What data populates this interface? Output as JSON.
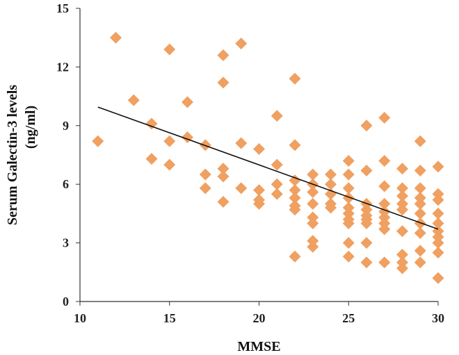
{
  "chart_data": {
    "type": "scatter",
    "title": "",
    "xlabel": "MMSE",
    "ylabel_lines": [
      "Serum Galectin-3 levels",
      "(ng/ml)"
    ],
    "xlim": [
      10,
      30
    ],
    "ylim": [
      0,
      15
    ],
    "x_ticks": [
      10,
      15,
      20,
      25,
      30
    ],
    "y_ticks": [
      0,
      3,
      6,
      9,
      12,
      15
    ],
    "grid": false,
    "legend": "none",
    "marker": "diamond",
    "marker_color": "#f0a060",
    "trendline_color": "#111111",
    "series": [
      {
        "points": [
          [
            11,
            8.2
          ],
          [
            12,
            13.5
          ],
          [
            13,
            10.3
          ],
          [
            14,
            9.1
          ],
          [
            14,
            7.3
          ],
          [
            15,
            12.9
          ],
          [
            15,
            8.2
          ],
          [
            15,
            7.0
          ],
          [
            16,
            10.2
          ],
          [
            16,
            8.4
          ],
          [
            17,
            8.0
          ],
          [
            17,
            6.5
          ],
          [
            17,
            5.8
          ],
          [
            18,
            12.6
          ],
          [
            18,
            11.2
          ],
          [
            18,
            6.8
          ],
          [
            18,
            6.4
          ],
          [
            18,
            5.1
          ],
          [
            19,
            13.2
          ],
          [
            19,
            8.1
          ],
          [
            19,
            5.8
          ],
          [
            20,
            7.8
          ],
          [
            20,
            5.7
          ],
          [
            20,
            5.2
          ],
          [
            20,
            5.0
          ],
          [
            21,
            9.5
          ],
          [
            21,
            7.0
          ],
          [
            21,
            6.0
          ],
          [
            21,
            5.5
          ],
          [
            22,
            11.4
          ],
          [
            22,
            8.0
          ],
          [
            22,
            6.2
          ],
          [
            22,
            5.7
          ],
          [
            22,
            5.3
          ],
          [
            22,
            4.9
          ],
          [
            22,
            4.7
          ],
          [
            22,
            2.3
          ],
          [
            23,
            6.5
          ],
          [
            23,
            6.0
          ],
          [
            23,
            5.6
          ],
          [
            23,
            5.0
          ],
          [
            23,
            4.3
          ],
          [
            23,
            4.0
          ],
          [
            23,
            3.1
          ],
          [
            23,
            2.8
          ],
          [
            24,
            6.5
          ],
          [
            24,
            6.0
          ],
          [
            24,
            5.5
          ],
          [
            24,
            5.0
          ],
          [
            24,
            4.8
          ],
          [
            25,
            7.2
          ],
          [
            25,
            6.5
          ],
          [
            25,
            5.8
          ],
          [
            25,
            5.3
          ],
          [
            25,
            4.8
          ],
          [
            25,
            4.5
          ],
          [
            25,
            4.2
          ],
          [
            25,
            4.0
          ],
          [
            25,
            3.0
          ],
          [
            25,
            2.3
          ],
          [
            26,
            9.0
          ],
          [
            26,
            6.7
          ],
          [
            26,
            5.0
          ],
          [
            26,
            4.7
          ],
          [
            26,
            4.4
          ],
          [
            26,
            4.2
          ],
          [
            26,
            4.0
          ],
          [
            26,
            3.0
          ],
          [
            26,
            2.0
          ],
          [
            27,
            9.4
          ],
          [
            27,
            7.2
          ],
          [
            27,
            5.9
          ],
          [
            27,
            5.0
          ],
          [
            27,
            4.6
          ],
          [
            27,
            4.3
          ],
          [
            27,
            4.0
          ],
          [
            27,
            3.7
          ],
          [
            27,
            2.0
          ],
          [
            28,
            6.8
          ],
          [
            28,
            5.8
          ],
          [
            28,
            5.4
          ],
          [
            28,
            5.0
          ],
          [
            28,
            4.7
          ],
          [
            28,
            3.6
          ],
          [
            28,
            2.4
          ],
          [
            28,
            2.0
          ],
          [
            28,
            1.7
          ],
          [
            29,
            8.2
          ],
          [
            29,
            6.7
          ],
          [
            29,
            5.8
          ],
          [
            29,
            5.3
          ],
          [
            29,
            5.0
          ],
          [
            29,
            4.5
          ],
          [
            29,
            4.0
          ],
          [
            29,
            3.5
          ],
          [
            29,
            2.6
          ],
          [
            29,
            2.0
          ],
          [
            30,
            6.9
          ],
          [
            30,
            5.5
          ],
          [
            30,
            5.2
          ],
          [
            30,
            4.5
          ],
          [
            30,
            4.0
          ],
          [
            30,
            3.6
          ],
          [
            30,
            3.3
          ],
          [
            30,
            3.0
          ],
          [
            30,
            2.5
          ],
          [
            30,
            1.2
          ]
        ]
      }
    ],
    "trendline": {
      "x": [
        11,
        30
      ],
      "y": [
        9.95,
        3.7
      ]
    }
  }
}
